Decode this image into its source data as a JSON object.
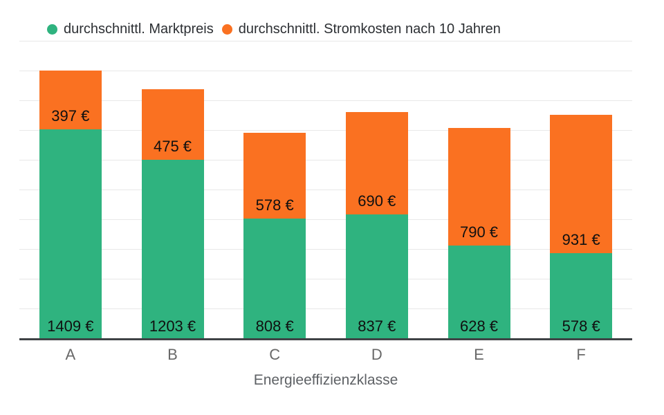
{
  "legend": {
    "items": [
      {
        "label": "durchschnittl. Marktpreis",
        "color": "#2fb37f"
      },
      {
        "label": "durchschnittl. Stromkosten nach 10 Jahren",
        "color": "#fa7121"
      }
    ]
  },
  "chart_data": {
    "type": "bar",
    "stacked": true,
    "title": "",
    "xlabel": "Energieeffizienzklasse",
    "ylabel": "",
    "categories": [
      "A",
      "B",
      "C",
      "D",
      "E",
      "F"
    ],
    "series": [
      {
        "name": "durchschnittl. Marktpreis",
        "color": "#2fb37f",
        "values": [
          1409,
          1203,
          808,
          837,
          628,
          578
        ],
        "labels": [
          "1409 €",
          "1203 €",
          "808 €",
          "837 €",
          "628 €",
          "578 €"
        ]
      },
      {
        "name": "durchschnittl. Stromkosten nach 10 Jahren",
        "color": "#fa7121",
        "values": [
          397,
          475,
          578,
          690,
          790,
          931
        ],
        "labels": [
          "397 €",
          "475 €",
          "578 €",
          "690 €",
          "790 €",
          "931 €"
        ]
      }
    ],
    "ylim": [
      0,
      2000
    ],
    "grid_step": 200,
    "grid": true,
    "y_axis_labels_shown": false,
    "legend_position": "top-left",
    "colors": {
      "gridline": "#e8e8e8",
      "axis_line": "#3f4245",
      "value_label_text": "#101010",
      "tick_text": "#686868",
      "axis_title_text": "#5e6165",
      "legend_text": "#2c2f33",
      "background": "#ffffff"
    }
  }
}
